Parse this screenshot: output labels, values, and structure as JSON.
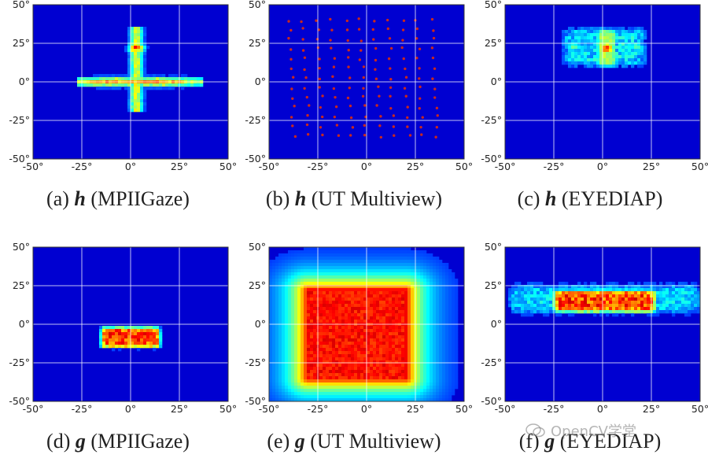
{
  "figure": {
    "tick_suffix": "°",
    "watermark_text": "OpenCV学堂"
  },
  "chart_data": [
    {
      "id": "a",
      "type": "heatmap",
      "caption_prefix": "(a) ",
      "symbol": "h",
      "caption_rest": " (MPIIGaze)",
      "xlim": [
        -50,
        50
      ],
      "ylim": [
        -50,
        50
      ],
      "x_ticks": [
        "-50",
        "-25",
        "0",
        "25",
        "50"
      ],
      "y_ticks": [
        "50",
        "25",
        "0",
        "-25",
        "-50"
      ],
      "grid": true,
      "pattern": "cross",
      "peak": {
        "x": 3,
        "y": 22
      },
      "horizontal_arm_x": [
        -28,
        37
      ],
      "vertical_arm_y": [
        -20,
        36
      ]
    },
    {
      "id": "b",
      "type": "heatmap",
      "caption_prefix": "(b) ",
      "symbol": "h",
      "caption_rest": " (UT Multiview)",
      "xlim": [
        -50,
        50
      ],
      "ylim": [
        -50,
        50
      ],
      "x_ticks": [
        "-50",
        "-25",
        "0",
        "25",
        "50"
      ],
      "y_ticks": [
        "50",
        "25",
        "0",
        "-25",
        "-50"
      ],
      "grid": true,
      "pattern": "point-grid",
      "points_x_range": [
        -40,
        33
      ],
      "points_y_range": [
        -35,
        40
      ],
      "points_cols": 11,
      "points_rows": 13
    },
    {
      "id": "c",
      "type": "heatmap",
      "caption_prefix": "(c) ",
      "symbol": "h",
      "caption_rest": " (EYEDIAP)",
      "xlim": [
        -50,
        50
      ],
      "ylim": [
        -50,
        50
      ],
      "x_ticks": [
        "-50",
        "-25",
        "0",
        "25",
        "50"
      ],
      "y_ticks": [
        "50",
        "25",
        "0",
        "-25",
        "-50"
      ],
      "grid": true,
      "pattern": "cluster",
      "peak": {
        "x": 2,
        "y": 22
      },
      "spread_x_range": [
        -20,
        22
      ],
      "spread_y_range": [
        10,
        35
      ]
    },
    {
      "id": "d",
      "type": "heatmap",
      "caption_prefix": "(d) ",
      "symbol": "g",
      "caption_rest": " (MPIIGaze)",
      "xlim": [
        -50,
        50
      ],
      "ylim": [
        -50,
        50
      ],
      "x_ticks": [
        "-50",
        "-25",
        "0",
        "25",
        "50"
      ],
      "y_ticks": [
        "50",
        "25",
        "0",
        "-25",
        "-50"
      ],
      "grid": true,
      "pattern": "rectangle",
      "region_x_range": [
        -15,
        15
      ],
      "region_y_range": [
        -15,
        -2
      ]
    },
    {
      "id": "e",
      "type": "heatmap",
      "caption_prefix": "(e) ",
      "symbol": "g",
      "caption_rest": " (UT Multiview)",
      "xlim": [
        -50,
        50
      ],
      "ylim": [
        -50,
        50
      ],
      "x_ticks": [
        "-50",
        "-25",
        "0",
        "25",
        "50"
      ],
      "y_ticks": [
        "50",
        "25",
        "0",
        "-25",
        "-50"
      ],
      "grid": true,
      "pattern": "broad",
      "region_x_range": [
        -30,
        20
      ],
      "region_y_range": [
        -35,
        22
      ]
    },
    {
      "id": "f",
      "type": "heatmap",
      "caption_prefix": "(f) ",
      "symbol": "g",
      "caption_rest": " (EYEDIAP)",
      "xlim": [
        -50,
        50
      ],
      "ylim": [
        -50,
        50
      ],
      "x_ticks": [
        "-50",
        "-25",
        "0",
        "25",
        "50"
      ],
      "y_ticks": [
        "50",
        "25",
        "0",
        "-25",
        "-50"
      ],
      "grid": true,
      "pattern": "band",
      "region_x_range": [
        -25,
        27
      ],
      "region_y_range": [
        8,
        22
      ],
      "faint_x_range": [
        -48,
        50
      ],
      "faint_y_range": [
        8,
        22
      ]
    }
  ]
}
